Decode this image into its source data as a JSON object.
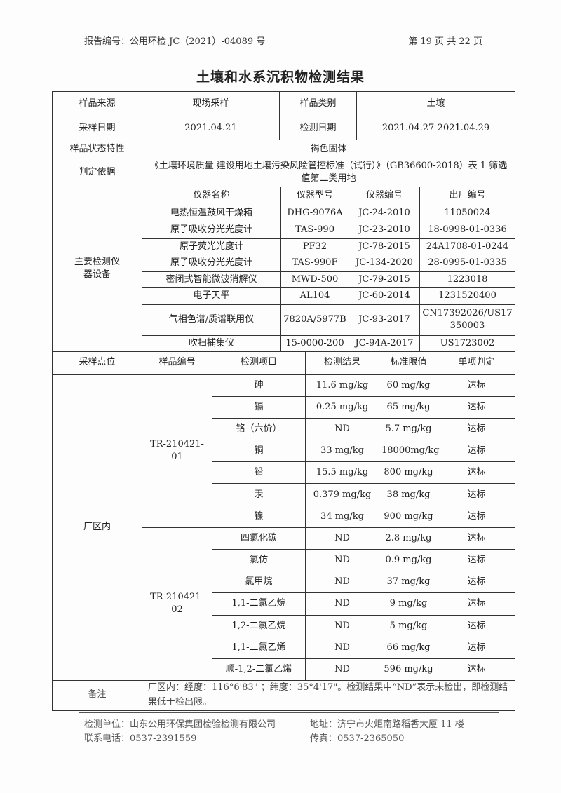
{
  "header": {
    "report_no": "报告编号：公用环检 JC（2021）-04089 号",
    "page": "第 19 页 共 22 页"
  },
  "title": "土壤和水系沉积物检测结果",
  "info": {
    "source_label": "样品来源",
    "source": "现场采样",
    "type_label": "样品类别",
    "type": "土壤",
    "date_label": "采样日期",
    "date": "2021.04.21",
    "test_date_label": "检测日期",
    "test_date": "2021.04.27-2021.04.29",
    "state_label": "样品状态特性",
    "state": "褐色固体",
    "basis_label": "判定依据",
    "basis": "《土壤环境质量 建设用地土壤污染风险管控标准（试行）》（GB36600-2018）表 1 筛选值第二类用地"
  },
  "instruments": {
    "section_label": "主要检测仪器设备",
    "headers": [
      "仪器名称",
      "仪器型号",
      "仪器编号",
      "出厂编号"
    ],
    "rows": [
      [
        "电热恒温鼓风干燥箱",
        "DHG-9076A",
        "JC-24-2010",
        "11050024"
      ],
      [
        "原子吸收分光光度计",
        "TAS-990",
        "JC-23-2010",
        "18-0998-01-0336"
      ],
      [
        "原子荧光光度计",
        "PF32",
        "JC-78-2015",
        "24A1708-01-0244"
      ],
      [
        "原子吸收分光光度计",
        "TAS-990F",
        "JC-134-2020",
        "28-0995-01-0335"
      ],
      [
        "密闭式智能微波消解仪",
        "MWD-500",
        "JC-79-2015",
        "1223018"
      ],
      [
        "电子天平",
        "AL104",
        "JC-60-2014",
        "1231520400"
      ],
      [
        "气相色谱/质谱联用仪",
        "7820A/5977B",
        "JC-93-2017",
        "CN17392026/US17350003"
      ],
      [
        "吹扫捕集仪",
        "15-0000-200",
        "JC-94A-2017",
        "US1723002"
      ]
    ]
  },
  "results": {
    "headers": [
      "采样点位",
      "样品编号",
      "检测项目",
      "检测结果",
      "标准限值",
      "单项判定"
    ],
    "site": "厂区内",
    "samples": [
      {
        "id": "TR-210421-01",
        "rows": [
          [
            "砷",
            "11.6 mg/kg",
            "60 mg/kg",
            "达标"
          ],
          [
            "镉",
            "0.25 mg/kg",
            "65 mg/kg",
            "达标"
          ],
          [
            "铬（六价）",
            "ND",
            "5.7 mg/kg",
            "达标"
          ],
          [
            "铜",
            "33 mg/kg",
            "18000mg/kg",
            "达标"
          ],
          [
            "铅",
            "15.5 mg/kg",
            "800 mg/kg",
            "达标"
          ],
          [
            "汞",
            "0.379 mg/kg",
            "38 mg/kg",
            "达标"
          ],
          [
            "镍",
            "34 mg/kg",
            "900 mg/kg",
            "达标"
          ]
        ]
      },
      {
        "id": "TR-210421-02",
        "rows": [
          [
            "四氯化碳",
            "ND",
            "2.8 mg/kg",
            "达标"
          ],
          [
            "氯仿",
            "ND",
            "0.9 mg/kg",
            "达标"
          ],
          [
            "氯甲烷",
            "ND",
            "37 mg/kg",
            "达标"
          ],
          [
            "1,1-二氯乙烷",
            "ND",
            "9 mg/kg",
            "达标"
          ],
          [
            "1,2-二氯乙烷",
            "ND",
            "5 mg/kg",
            "达标"
          ],
          [
            "1,1-二氯乙烯",
            "ND",
            "66 mg/kg",
            "达标"
          ],
          [
            "顺-1,2-二氯乙烯",
            "ND",
            "596 mg/kg",
            "达标"
          ]
        ]
      }
    ]
  },
  "remarks": {
    "label": "备注",
    "text": "厂区内：经度：116°6'83\" ；纬度：35°4'17\"。检测结果中“ND”表示未检出，即检测结果低于检出限。"
  },
  "footer": {
    "unit": "检测单位：山东公用环保集团检验检测有限公司",
    "address": "地址：济宁市火炬南路稻香大厦 11 楼",
    "phone": "联系电话：0537-2391559",
    "fax": "传真：0537-2365050"
  }
}
